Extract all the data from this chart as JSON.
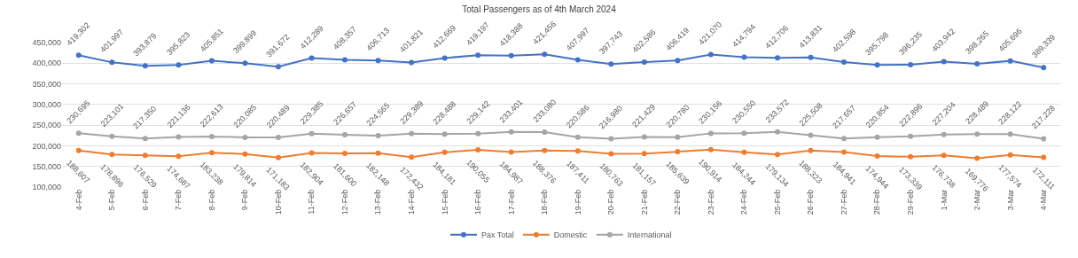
{
  "chart_data": {
    "type": "line",
    "title": "Total Passengers as of 4th March 2024",
    "categories": [
      "4-Feb",
      "5-Feb",
      "6-Feb",
      "7-Feb",
      "8-Feb",
      "9-Feb",
      "10-Feb",
      "11-Feb",
      "12-Feb",
      "13-Feb",
      "14-Feb",
      "15-Feb",
      "16-Feb",
      "17-Feb",
      "18-Feb",
      "19-Feb",
      "20-Feb",
      "21-Feb",
      "22-Feb",
      "23-Feb",
      "24-Feb",
      "25-Feb",
      "26-Feb",
      "27-Feb",
      "28-Feb",
      "29-Feb",
      "1-Mar",
      "2-Mar",
      "3-Mar",
      "4-Mar"
    ],
    "series": [
      {
        "name": "Pax Total",
        "color": "#4472c4",
        "values": [
          419302,
          401997,
          393879,
          395823,
          405851,
          399899,
          391672,
          412289,
          408357,
          406713,
          401821,
          412669,
          419197,
          418388,
          421456,
          407997,
          397743,
          402586,
          406419,
          421070,
          414794,
          412706,
          413831,
          402598,
          395798,
          396235,
          403942,
          398265,
          405696,
          389339
        ],
        "value_labels": [
          "419,302",
          "401,997",
          "393,879",
          "395,823",
          "405,851",
          "399,899",
          "391,672",
          "412,289",
          "408,357",
          "406,713",
          "401,821",
          "412,669",
          "419,197",
          "418,388",
          "421,456",
          "407,997",
          "397,743",
          "402,586",
          "406,419",
          "421,070",
          "414,794",
          "412,706",
          "413,831",
          "402,598",
          "395,798",
          "396,235",
          "403,942",
          "398,265",
          "405,696",
          "389,339"
        ]
      },
      {
        "name": "Domestic",
        "color": "#ed7d31",
        "values": [
          188607,
          178896,
          176529,
          174687,
          183238,
          179814,
          171183,
          182904,
          181600,
          182148,
          172432,
          184181,
          190055,
          184987,
          188376,
          187411,
          180763,
          181157,
          185639,
          190914,
          184244,
          179134,
          188323,
          184941,
          174944,
          173339,
          176738,
          169776,
          177574,
          172111
        ],
        "value_labels": [
          "188,607",
          "178,896",
          "176,529",
          "174,687",
          "183,238",
          "179,814",
          "171,183",
          "182,904",
          "181,600",
          "182,148",
          "172,432",
          "184,181",
          "190,055",
          "184,987",
          "188,376",
          "187,411",
          "180,763",
          "181,157",
          "185,639",
          "190,914",
          "184,244",
          "179,134",
          "188,323",
          "184,941",
          "174,944",
          "173,339",
          "176,738",
          "169,776",
          "177,574",
          "172,111"
        ]
      },
      {
        "name": "International",
        "color": "#a5a5a5",
        "values": [
          230695,
          223101,
          217350,
          221136,
          222613,
          220085,
          220489,
          229385,
          226657,
          224565,
          229389,
          228488,
          229142,
          233401,
          233080,
          220586,
          216980,
          221429,
          220780,
          230156,
          230550,
          233572,
          225508,
          217657,
          220854,
          222896,
          227204,
          228489,
          228122,
          217228
        ],
        "value_labels": [
          "230,695",
          "223,101",
          "217,350",
          "221,136",
          "222,613",
          "220,085",
          "220,489",
          "229,385",
          "226,657",
          "224,565",
          "229,389",
          "228,488",
          "229,142",
          "233,401",
          "233,080",
          "220,586",
          "216,980",
          "221,429",
          "220,780",
          "230,156",
          "230,550",
          "233,572",
          "225,508",
          "217,657",
          "220,854",
          "222,896",
          "227,204",
          "228,489",
          "228,122",
          "217,228"
        ]
      }
    ],
    "ylim": [
      100000,
      450000
    ],
    "yticks": [
      {
        "value": 100000,
        "label": "100,000"
      },
      {
        "value": 150000,
        "label": "150,000"
      },
      {
        "value": 200000,
        "label": "200,000"
      },
      {
        "value": 250000,
        "label": "250,000"
      },
      {
        "value": 300000,
        "label": "300,000"
      },
      {
        "value": 350000,
        "label": "350,000"
      },
      {
        "value": 400000,
        "label": "400,000"
      },
      {
        "value": 450000,
        "label": "450,000"
      }
    ],
    "grid": "y",
    "legend": "bottom",
    "marker": "circle",
    "line_style": "solid"
  }
}
